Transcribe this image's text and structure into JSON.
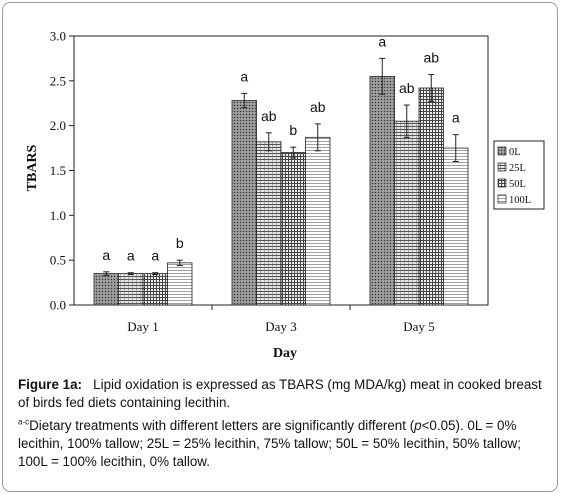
{
  "chart_data": {
    "type": "bar",
    "categories": [
      "Day 1",
      "Day 3",
      "Day 5"
    ],
    "series": [
      {
        "name": "0L",
        "values": [
          0.35,
          2.28,
          2.55
        ],
        "errors": [
          0.02,
          0.08,
          0.2
        ],
        "letters": [
          "a",
          "a",
          "a"
        ],
        "pattern": "dense-dots"
      },
      {
        "name": "25L",
        "values": [
          0.35,
          1.82,
          2.05
        ],
        "errors": [
          0.01,
          0.1,
          0.18
        ],
        "letters": [
          "a",
          "ab",
          "ab"
        ],
        "pattern": "horizontal-lines"
      },
      {
        "name": "50L",
        "values": [
          0.35,
          1.7,
          2.42
        ],
        "errors": [
          0.01,
          0.06,
          0.15
        ],
        "letters": [
          "a",
          "b",
          "ab"
        ],
        "pattern": "grid"
      },
      {
        "name": "100L",
        "values": [
          0.47,
          1.87,
          1.75
        ],
        "errors": [
          0.03,
          0.15,
          0.15
        ],
        "letters": [
          "b",
          "ab",
          "a"
        ],
        "pattern": "light-lines"
      }
    ],
    "xlabel": "Day",
    "ylabel": "TBARS",
    "ylim": [
      0.0,
      3.0
    ],
    "yticks": [
      "0.0",
      "0.5",
      "1.0",
      "1.5",
      "2.0",
      "2.5",
      "3.0"
    ],
    "grid": false,
    "legend_placement": "right"
  },
  "caption": {
    "figure_label": "Figure 1a:",
    "text": "Lipid oxidation is expressed as TBARS (mg MDA/kg) meat in cooked breast of birds fed diets containing lecithin.",
    "note_superscript": "a-c",
    "note_text": "Dietary treatments with different letters are significantly different (",
    "note_p": "p",
    "note_text2": "<0.05). 0L = 0% lecithin, 100% tallow; 25L = 25% lecithin, 75% tallow; 50L = 50% lecithin, 50% tallow; 100L = 100% lecithin, 0% tallow."
  }
}
